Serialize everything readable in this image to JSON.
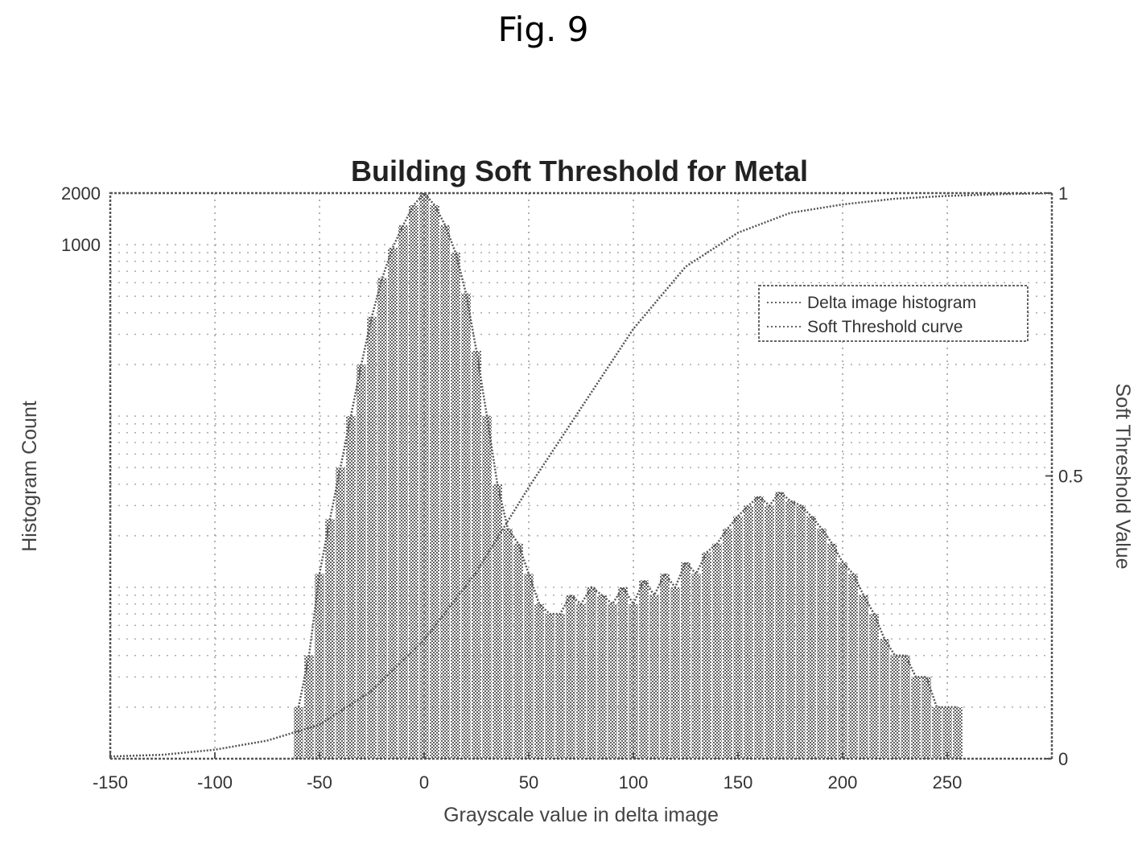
{
  "figure": {
    "label": "Fig. 9"
  },
  "chart_data": {
    "type": "line",
    "title": "Building Soft Threshold for Metal",
    "xlabel": "Grayscale value in delta image",
    "ylabel": "Histogram Count",
    "y2label": "Soft Threshold Value",
    "xlim": [
      -150,
      300
    ],
    "x_ticks": [
      -150,
      -100,
      -50,
      0,
      50,
      100,
      150,
      200,
      250
    ],
    "y_scale": "log",
    "y_ticks": [
      2000,
      1000
    ],
    "y2lim": [
      0,
      1
    ],
    "y2_ticks": [
      0,
      0.5,
      1
    ],
    "grid": true,
    "legend_position": "top-right",
    "series": [
      {
        "name": "Delta image histogram",
        "axis": "left",
        "style": "dotted",
        "x": [
          -60,
          -55,
          -50,
          -45,
          -40,
          -35,
          -30,
          -25,
          -20,
          -15,
          -10,
          -5,
          0,
          5,
          10,
          15,
          20,
          25,
          30,
          35,
          40,
          45,
          50,
          55,
          60,
          65,
          70,
          75,
          80,
          85,
          90,
          95,
          100,
          105,
          110,
          115,
          120,
          125,
          130,
          135,
          140,
          145,
          150,
          155,
          160,
          165,
          170,
          175,
          180,
          185,
          190,
          195,
          200,
          205,
          210,
          215,
          220,
          225,
          230,
          235,
          240,
          245,
          250,
          255
        ],
        "y": [
          2,
          4,
          12,
          25,
          50,
          100,
          200,
          380,
          640,
          960,
          1300,
          1700,
          2000,
          1700,
          1300,
          900,
          520,
          240,
          100,
          40,
          22,
          18,
          12,
          8,
          7,
          7,
          9,
          8,
          10,
          9,
          8,
          10,
          8,
          11,
          9,
          12,
          10,
          14,
          12,
          16,
          18,
          22,
          26,
          30,
          34,
          30,
          36,
          32,
          30,
          26,
          22,
          18,
          14,
          12,
          9,
          7,
          5,
          4,
          4,
          3,
          3,
          2,
          2,
          2
        ]
      },
      {
        "name": "Soft Threshold curve",
        "axis": "right",
        "style": "dotted",
        "x": [
          -150,
          -125,
          -100,
          -75,
          -50,
          -25,
          0,
          25,
          50,
          75,
          100,
          125,
          150,
          175,
          200,
          225,
          250,
          275,
          300
        ],
        "y": [
          0.004,
          0.007,
          0.016,
          0.032,
          0.06,
          0.12,
          0.21,
          0.33,
          0.48,
          0.62,
          0.76,
          0.87,
          0.93,
          0.965,
          0.98,
          0.99,
          0.995,
          0.998,
          1.0
        ]
      }
    ]
  }
}
